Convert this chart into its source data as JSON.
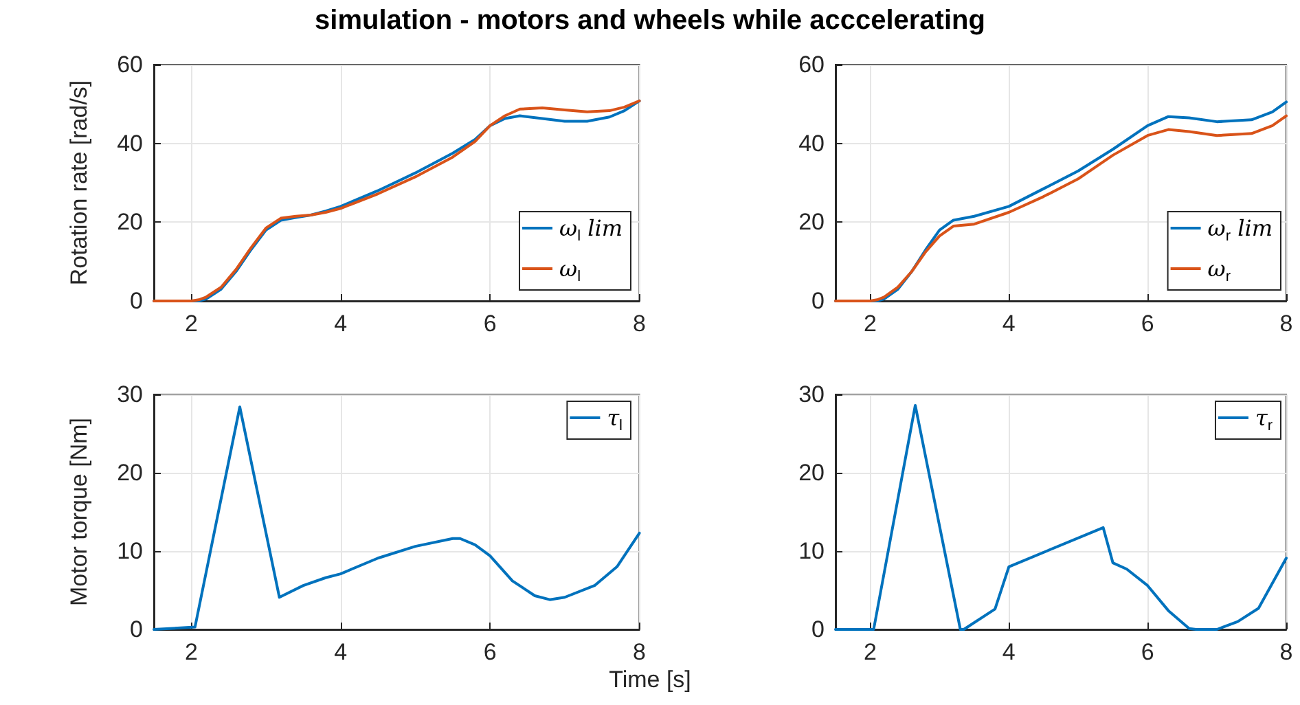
{
  "chart_data": [
    {
      "type": "line",
      "title": "simulation - motors and wheels while acccelerating",
      "ylabel": "Rotation rate [rad/s]",
      "xlim": [
        1.5,
        8
      ],
      "xticks": [
        2,
        4,
        6,
        8
      ],
      "ylim": [
        0,
        60
      ],
      "yticks": [
        0,
        20,
        40,
        60
      ],
      "grid": true,
      "legend": "bottom right",
      "marker": "none",
      "line_style": "solid",
      "series": [
        {
          "name": "ω$_{l}$ lim",
          "color": "#0072bd",
          "x": [
            1.5,
            2.0,
            2.1,
            2.2,
            2.4,
            2.6,
            2.8,
            3.0,
            3.2,
            3.4,
            3.6,
            3.8,
            4.0,
            4.5,
            5.0,
            5.5,
            5.8,
            6.0,
            6.2,
            6.4,
            6.7,
            7.0,
            7.3,
            7.6,
            7.8,
            8.0
          ],
          "values": [
            0,
            0,
            0,
            0.5,
            3,
            7.5,
            13,
            18,
            20.5,
            21.2,
            21.8,
            22.8,
            24,
            28,
            32.5,
            37.5,
            41,
            44.5,
            46.3,
            47,
            46.3,
            45.6,
            45.6,
            46.7,
            48.3,
            50.8
          ]
        },
        {
          "name": "ω$_{l}$",
          "color": "#d95319",
          "x": [
            1.5,
            2.0,
            2.1,
            2.2,
            2.4,
            2.6,
            2.8,
            3.0,
            3.2,
            3.4,
            3.6,
            3.8,
            4.0,
            4.5,
            5.0,
            5.5,
            5.8,
            6.0,
            6.2,
            6.4,
            6.7,
            7.0,
            7.3,
            7.6,
            7.8,
            8.0
          ],
          "values": [
            0,
            0,
            0.3,
            1,
            3.5,
            8,
            13.5,
            18.5,
            21,
            21.5,
            21.8,
            22.5,
            23.5,
            27.2,
            31.5,
            36.5,
            40.5,
            44.5,
            47,
            48.7,
            49,
            48.5,
            48,
            48.3,
            49.2,
            50.8
          ]
        }
      ]
    },
    {
      "type": "line",
      "xlim": [
        1.5,
        8
      ],
      "xticks": [
        2,
        4,
        6,
        8
      ],
      "ylim": [
        0,
        60
      ],
      "yticks": [
        0,
        20,
        40,
        60
      ],
      "grid": true,
      "legend": "bottom right",
      "marker": "none",
      "line_style": "solid",
      "series": [
        {
          "name": "ω$_{r}$ lim",
          "color": "#0072bd",
          "x": [
            1.5,
            2.0,
            2.1,
            2.2,
            2.4,
            2.6,
            2.8,
            3.0,
            3.2,
            3.5,
            4.0,
            4.5,
            5.0,
            5.5,
            6.0,
            6.3,
            6.6,
            7.0,
            7.5,
            7.8,
            8.0
          ],
          "values": [
            0,
            0,
            0,
            0.5,
            3,
            7.5,
            13,
            18,
            20.5,
            21.5,
            24,
            28.5,
            33,
            38.5,
            44.5,
            46.8,
            46.5,
            45.5,
            46,
            48,
            50.5
          ]
        },
        {
          "name": "ω$_{r}$",
          "color": "#d95319",
          "x": [
            1.5,
            2.0,
            2.1,
            2.2,
            2.4,
            2.6,
            2.8,
            3.0,
            3.2,
            3.5,
            4.0,
            4.5,
            5.0,
            5.5,
            6.0,
            6.3,
            6.6,
            7.0,
            7.5,
            7.8,
            8.0
          ],
          "values": [
            0,
            0,
            0.3,
            1,
            3.5,
            7.5,
            12.5,
            16.5,
            19,
            19.5,
            22.5,
            26.5,
            31,
            37,
            42,
            43.5,
            43,
            42,
            42.5,
            44.5,
            47
          ]
        }
      ]
    },
    {
      "type": "line",
      "xlabel": "Time [s]",
      "ylabel": "Motor torque [Nm]",
      "xlim": [
        1.5,
        8
      ],
      "xticks": [
        2,
        4,
        6,
        8
      ],
      "ylim": [
        0,
        30
      ],
      "yticks": [
        0,
        10,
        20,
        30
      ],
      "grid": true,
      "legend": "top right",
      "marker": "none",
      "line_style": "solid",
      "series": [
        {
          "name": "τ$_{l}$",
          "color": "#0072bd",
          "x": [
            1.5,
            2.05,
            2.65,
            3.18,
            3.5,
            3.8,
            4.0,
            4.5,
            5.0,
            5.5,
            5.6,
            5.8,
            6.0,
            6.3,
            6.6,
            6.8,
            7.0,
            7.4,
            7.7,
            8.0
          ],
          "values": [
            0,
            0.3,
            28.4,
            4.1,
            5.6,
            6.6,
            7.1,
            9.1,
            10.6,
            11.6,
            11.6,
            10.8,
            9.4,
            6.2,
            4.3,
            3.8,
            4.1,
            5.6,
            8.0,
            12.3
          ]
        }
      ]
    },
    {
      "type": "line",
      "xlim": [
        1.5,
        8
      ],
      "xticks": [
        2,
        4,
        6,
        8
      ],
      "ylim": [
        0,
        30
      ],
      "yticks": [
        0,
        10,
        20,
        30
      ],
      "grid": true,
      "legend": "top right",
      "marker": "none",
      "line_style": "solid",
      "series": [
        {
          "name": "τ$_{r}$",
          "color": "#0072bd",
          "x": [
            1.5,
            2.05,
            2.65,
            3.3,
            3.35,
            3.8,
            4.0,
            5.36,
            5.5,
            5.7,
            6.0,
            6.3,
            6.6,
            6.7,
            7.0,
            7.3,
            7.6,
            8.0
          ],
          "values": [
            0,
            0,
            28.6,
            0,
            0,
            2.6,
            8.0,
            13.0,
            8.5,
            7.7,
            5.6,
            2.4,
            0.1,
            0,
            0,
            1.0,
            2.7,
            9.1
          ]
        }
      ]
    }
  ]
}
